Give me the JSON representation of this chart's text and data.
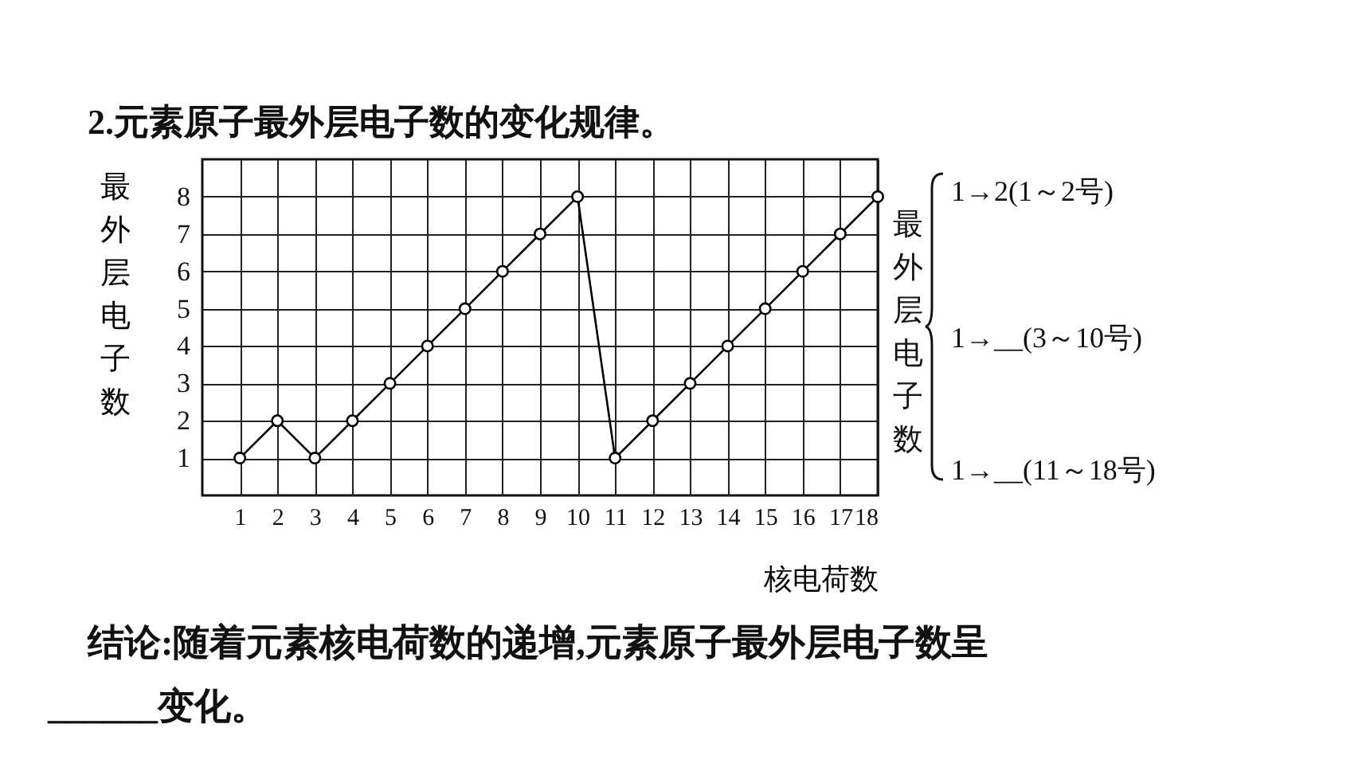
{
  "chart_data": {
    "type": "line",
    "title": "2.元素原子最外层电子数的变化规律。",
    "xlabel": "核电荷数",
    "ylabel": "最外层电子数",
    "x": [
      1,
      2,
      3,
      4,
      5,
      6,
      7,
      8,
      9,
      10,
      11,
      12,
      13,
      14,
      15,
      16,
      17,
      18
    ],
    "values": [
      1,
      2,
      1,
      2,
      3,
      4,
      5,
      6,
      7,
      8,
      1,
      2,
      3,
      4,
      5,
      6,
      7,
      8
    ],
    "color": "#000000",
    "marker": "circle",
    "grid": true,
    "xlim": [
      0,
      18
    ],
    "xticks": [
      1,
      2,
      3,
      4,
      5,
      6,
      7,
      8,
      9,
      10,
      11,
      12,
      13,
      14,
      15,
      16,
      17,
      18
    ],
    "ylim": [
      0,
      9
    ],
    "yticks": [
      1,
      2,
      3,
      4,
      5,
      6,
      7,
      8
    ],
    "annotations": [
      "最外层电子数",
      "1→2(1～2号)",
      "1→__(3～10号)",
      "1→__(11～18号)",
      "结论:随着元素核电荷数的递增,元素原子最外层电子数呈",
      "______变化。"
    ]
  }
}
